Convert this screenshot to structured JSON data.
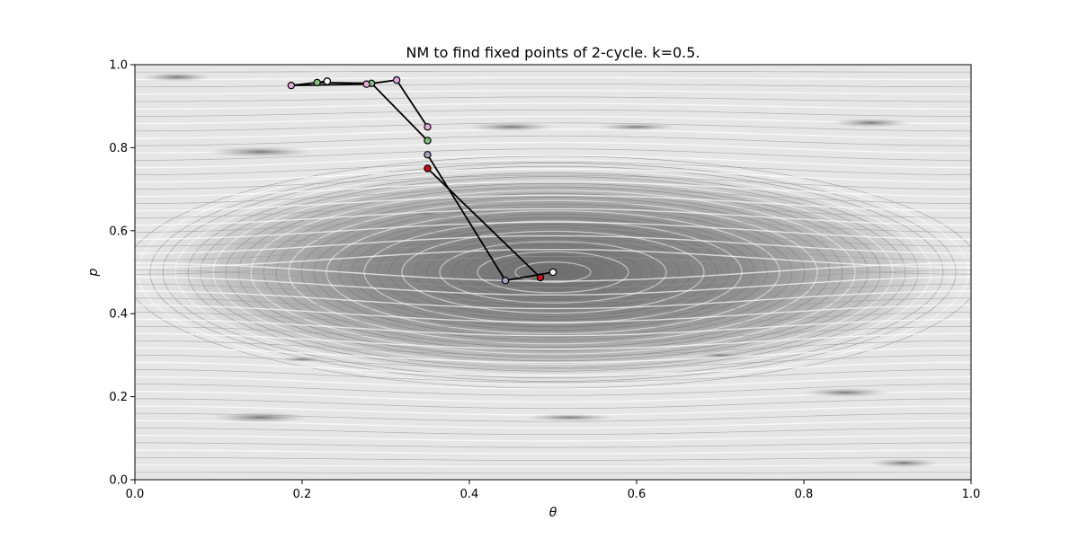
{
  "chart_data": {
    "type": "scatter",
    "title": "NM to find fixed points of 2-cycle. k=0.5.",
    "xlabel": "θ",
    "ylabel": "p",
    "xlim": [
      0.0,
      1.0
    ],
    "ylim": [
      0.0,
      1.0
    ],
    "x_ticks": [
      "0.0",
      "0.2",
      "0.4",
      "0.6",
      "0.8",
      "1.0"
    ],
    "y_ticks": [
      "0.0",
      "0.2",
      "0.4",
      "0.6",
      "0.8",
      "1.0"
    ],
    "grid": false,
    "legend": "none",
    "background": {
      "description_kind": "phase-space orbits of the standard map (gray contour texture)",
      "island_center": [
        0.5,
        0.5
      ],
      "colors": {
        "light": "#d8d8d8",
        "mid": "#a0a0a0",
        "dark": "#6e6e6e"
      }
    },
    "paths": [
      {
        "color": "#000000",
        "points": [
          {
            "x": 0.35,
            "y": 0.75,
            "fill": "#cc1111"
          },
          {
            "x": 0.485,
            "y": 0.487,
            "fill": "#cc1111"
          }
        ]
      },
      {
        "color": "#000000",
        "points": [
          {
            "x": 0.35,
            "y": 0.783,
            "fill": "#b0a0c8"
          },
          {
            "x": 0.443,
            "y": 0.48,
            "fill": "#b0a0c8"
          },
          {
            "x": 0.5,
            "y": 0.5,
            "fill": "#ffffff"
          }
        ]
      },
      {
        "color": "#000000",
        "points": [
          {
            "x": 0.35,
            "y": 0.817,
            "fill": "#7fbf7f"
          },
          {
            "x": 0.283,
            "y": 0.955,
            "fill": "#7fbf7f"
          },
          {
            "x": 0.218,
            "y": 0.957,
            "fill": "#7fbf7f"
          },
          {
            "x": 0.23,
            "y": 0.96,
            "fill": "#ffffff"
          }
        ]
      },
      {
        "color": "#000000",
        "points": [
          {
            "x": 0.35,
            "y": 0.85,
            "fill": "#e8a8d8"
          },
          {
            "x": 0.313,
            "y": 0.963,
            "fill": "#e8a8d8"
          },
          {
            "x": 0.277,
            "y": 0.953,
            "fill": "#e8a8d8"
          },
          {
            "x": 0.187,
            "y": 0.95,
            "fill": "#e8a8d8"
          },
          {
            "x": 0.23,
            "y": 0.96,
            "fill": "#ffffff"
          }
        ]
      }
    ]
  }
}
